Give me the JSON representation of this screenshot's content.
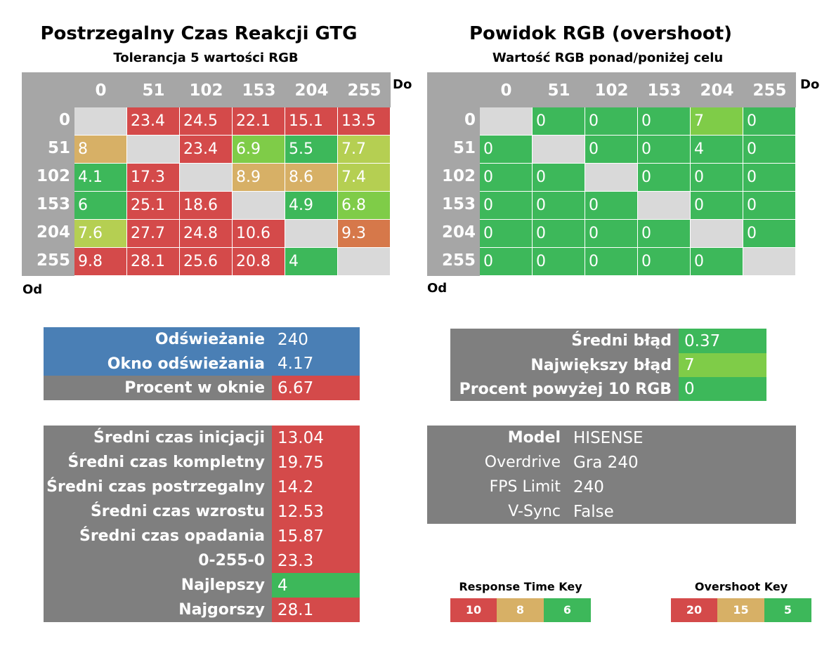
{
  "colors": {
    "header_gray": "#a6a6a6",
    "panel_gray": "#7f7f7f",
    "diag_gray": "#d9d9d9",
    "blue": "#4a7fb5",
    "red": "#d44a4a",
    "orange": "#d6784a",
    "tan": "#d7b066",
    "yellowgreen": "#b5cf52",
    "lightgreen": "#7fcc48",
    "green": "#3db85a"
  },
  "left_chart": {
    "title": "Postrzegalny Czas Reakcji GTG",
    "subtitle": "Tolerancja 5 wartości RGB",
    "to_label": "Do",
    "from_label": "Od"
  },
  "right_chart": {
    "title": "Powidok RGB (overshoot)",
    "subtitle": "Wartość RGB ponad/poniżej celu",
    "to_label": "Do",
    "from_label": "Od"
  },
  "chart_data": [
    {
      "type": "heatmap",
      "title": "Postrzegalny Czas Reakcji GTG",
      "subtitle": "Tolerancja 5 wartości RGB",
      "xlabel": "Do",
      "ylabel": "Od",
      "x": [
        "0",
        "51",
        "102",
        "153",
        "204",
        "255"
      ],
      "y": [
        "0",
        "51",
        "102",
        "153",
        "204",
        "255"
      ],
      "values": [
        [
          null,
          23.4,
          24.5,
          22.1,
          15.1,
          13.5
        ],
        [
          8,
          null,
          23.4,
          6.9,
          5.5,
          7.7
        ],
        [
          4.1,
          17.3,
          null,
          8.9,
          8.6,
          7.4
        ],
        [
          6,
          25.1,
          18.6,
          null,
          4.9,
          6.8
        ],
        [
          7.6,
          27.7,
          24.8,
          10.6,
          null,
          9.3
        ],
        [
          9.8,
          28.1,
          25.6,
          20.8,
          4,
          null
        ]
      ],
      "cell_colors": [
        [
          "diag",
          "red",
          "red",
          "red",
          "red",
          "red"
        ],
        [
          "tan",
          "diag",
          "red",
          "lightgreen",
          "green",
          "yellowgreen"
        ],
        [
          "green",
          "red",
          "diag",
          "tan",
          "tan",
          "yellowgreen"
        ],
        [
          "green",
          "red",
          "red",
          "diag",
          "green",
          "lightgreen"
        ],
        [
          "yellowgreen",
          "red",
          "red",
          "red",
          "diag",
          "orange"
        ],
        [
          "red",
          "red",
          "red",
          "red",
          "green",
          "diag"
        ]
      ]
    },
    {
      "type": "heatmap",
      "title": "Powidok RGB (overshoot)",
      "subtitle": "Wartość RGB ponad/poniżej celu",
      "xlabel": "Do",
      "ylabel": "Od",
      "x": [
        "0",
        "51",
        "102",
        "153",
        "204",
        "255"
      ],
      "y": [
        "0",
        "51",
        "102",
        "153",
        "204",
        "255"
      ],
      "values": [
        [
          null,
          0,
          0,
          0,
          7,
          0
        ],
        [
          0,
          null,
          0,
          0,
          4,
          0
        ],
        [
          0,
          0,
          null,
          0,
          0,
          0
        ],
        [
          0,
          0,
          0,
          null,
          0,
          0
        ],
        [
          0,
          0,
          0,
          0,
          null,
          0
        ],
        [
          0,
          0,
          0,
          0,
          0,
          null
        ]
      ],
      "cell_colors": [
        [
          "diag",
          "green",
          "green",
          "green",
          "lightgreen",
          "green"
        ],
        [
          "green",
          "diag",
          "green",
          "green",
          "green",
          "green"
        ],
        [
          "green",
          "green",
          "diag",
          "green",
          "green",
          "green"
        ],
        [
          "green",
          "green",
          "green",
          "diag",
          "green",
          "green"
        ],
        [
          "green",
          "green",
          "green",
          "green",
          "diag",
          "green"
        ],
        [
          "green",
          "green",
          "green",
          "green",
          "green",
          "diag"
        ]
      ]
    }
  ],
  "refresh_panel": [
    {
      "label": "Odświeżanie",
      "value": "240",
      "label_color": "blue",
      "value_color": "blue"
    },
    {
      "label": "Okno odświeżania",
      "value": "4.17",
      "label_color": "blue",
      "value_color": "blue"
    },
    {
      "label": "Procent w oknie",
      "value": "6.67",
      "label_color": "panel_gray",
      "value_color": "red"
    }
  ],
  "error_panel": [
    {
      "label": "Średni błąd",
      "value": "0.37",
      "value_color": "green"
    },
    {
      "label": "Największy błąd",
      "value": "7",
      "value_color": "lightgreen"
    },
    {
      "label": "Procent powyżej 10 RGB",
      "value": "0",
      "value_color": "green"
    }
  ],
  "stats_panel": [
    {
      "label": "Średni czas inicjacji",
      "value": "13.04",
      "value_color": "red"
    },
    {
      "label": "Średni czas kompletny",
      "value": "19.75",
      "value_color": "red"
    },
    {
      "label": "Średni czas postrzegalny",
      "value": "14.2",
      "value_color": "red"
    },
    {
      "label": "Średni czas wzrostu",
      "value": "12.53",
      "value_color": "red"
    },
    {
      "label": "Średni czas opadania",
      "value": "15.87",
      "value_color": "red"
    },
    {
      "label": "0-255-0",
      "value": "23.3",
      "value_color": "red"
    },
    {
      "label": "Najlepszy",
      "value": "4",
      "value_color": "green"
    },
    {
      "label": "Najgorszy",
      "value": "28.1",
      "value_color": "red"
    }
  ],
  "settings_panel": [
    {
      "label": "Model",
      "value": "HISENSE",
      "bold": true
    },
    {
      "label": "Overdrive",
      "value": "Gra 240",
      "bold": false
    },
    {
      "label": "FPS Limit",
      "value": "240",
      "bold": false
    },
    {
      "label": "V-Sync",
      "value": "False",
      "bold": false
    }
  ],
  "response_key": {
    "title": "Response Time Key",
    "items": [
      {
        "value": "10",
        "color": "red"
      },
      {
        "value": "8",
        "color": "tan"
      },
      {
        "value": "6",
        "color": "green"
      }
    ]
  },
  "overshoot_key": {
    "title": "Overshoot Key",
    "items": [
      {
        "value": "20",
        "color": "red"
      },
      {
        "value": "15",
        "color": "tan"
      },
      {
        "value": "5",
        "color": "green"
      }
    ]
  }
}
